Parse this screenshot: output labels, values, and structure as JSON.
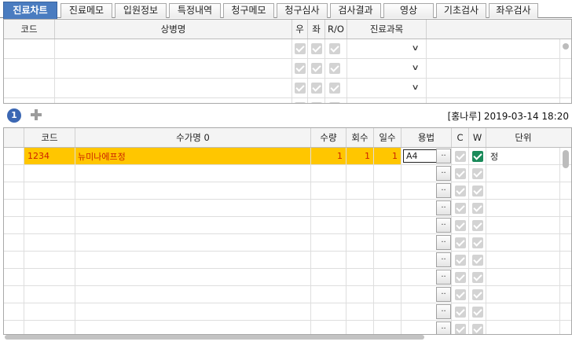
{
  "tabs": [
    "진료차트",
    "진료메모",
    "입원정보",
    "특정내역",
    "청구메모",
    "청구심사",
    "검사결과",
    "영상",
    "기초검사",
    "좌우검사"
  ],
  "active_tab": "진료차트",
  "diagnosis_grid": {
    "columns": [
      "코드",
      "상병명",
      "우",
      "좌",
      "R/O",
      "진료과목"
    ],
    "row_count": 4
  },
  "mid_bar": {
    "badge": "1",
    "add_icon": "plus-icon",
    "stamp": "[홍나루] 2019-03-14 18:20"
  },
  "order_grid": {
    "columns": [
      "코드",
      "수가명 0",
      "수량",
      "회수",
      "일수",
      "용법",
      "C",
      "W",
      "단위"
    ],
    "rows": [
      {
        "code": "1234",
        "name": "뉴미나에프정",
        "qty": "1",
        "times": "1",
        "days": "1",
        "usage": "A4",
        "c": false,
        "w": true,
        "unit": "정"
      }
    ],
    "empty_rows": 10,
    "dot_button_label": "..",
    "highlight_color": "#ffc600",
    "text_color": "#cc2200"
  }
}
